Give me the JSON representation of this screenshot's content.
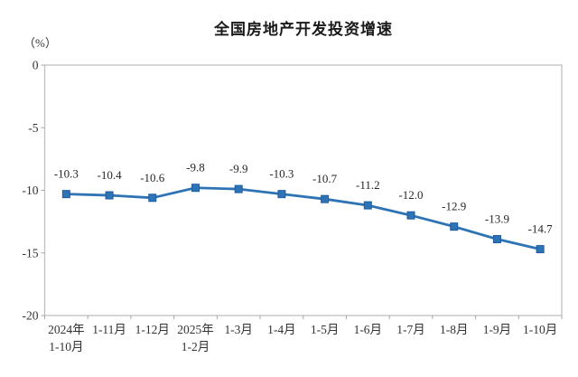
{
  "chart": {
    "title": "全国房地产开发投资增速",
    "unit": "（%）"
  },
  "chart_data": {
    "type": "line",
    "title": "全国房地产开发投资增速",
    "xlabel": "",
    "ylabel": "（%）",
    "categories": [
      "2024年\n1-10月",
      "1-11月",
      "1-12月",
      "2025年\n1-2月",
      "1-3月",
      "1-4月",
      "1-5月",
      "1-6月",
      "1-7月",
      "1-8月",
      "1-9月",
      "1-10月"
    ],
    "values": [
      -10.3,
      -10.4,
      -10.6,
      -9.8,
      -9.9,
      -10.3,
      -10.7,
      -11.2,
      -12.0,
      -12.9,
      -13.9,
      -14.7
    ],
    "point_labels": [
      "-10.3",
      "-10.4",
      "-10.6",
      "-9.8",
      "-9.9",
      "-10.3",
      "-10.7",
      "-11.2",
      "-12.0",
      "-12.9",
      "-13.9",
      "-14.7"
    ],
    "ylim": [
      -20,
      0
    ],
    "yticks": [
      0,
      -5,
      -10,
      -15,
      -20
    ],
    "grid": false,
    "legend": "none",
    "marker": "square",
    "line_color": "#2e74b5",
    "marker_color": "#2e74b5",
    "marker_edge_color": "#1f5da3",
    "label_color": "#262626",
    "axis_color": "#bfbfbf",
    "tick_color": "#a6a6a6"
  }
}
